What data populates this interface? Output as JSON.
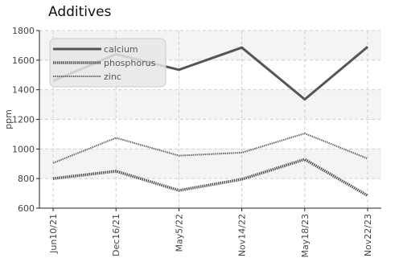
{
  "chart_data": {
    "type": "line",
    "title": "Additives",
    "ylabel": "ppm",
    "xlabel": "",
    "ylim": [
      600,
      1800
    ],
    "yticks": [
      600,
      800,
      1000,
      1200,
      1400,
      1600,
      1800
    ],
    "grid": true,
    "legend": "top-left",
    "categories": [
      "Jun10/21",
      "Dec16/21",
      "May5/22",
      "Nov14/22",
      "May18/23",
      "Nov22/23"
    ],
    "series": [
      {
        "name": "calcium",
        "values": [
          1460,
          1640,
          1535,
          1685,
          1335,
          1690
        ],
        "color": "#555555",
        "style": "solid"
      },
      {
        "name": "phosphorus",
        "values": [
          800,
          850,
          720,
          795,
          930,
          685
        ],
        "color": "#555555",
        "style": "dotted"
      },
      {
        "name": "zinc",
        "values": [
          905,
          1075,
          955,
          975,
          1105,
          935
        ],
        "color": "#666666",
        "style": "thin-dotted"
      }
    ]
  }
}
